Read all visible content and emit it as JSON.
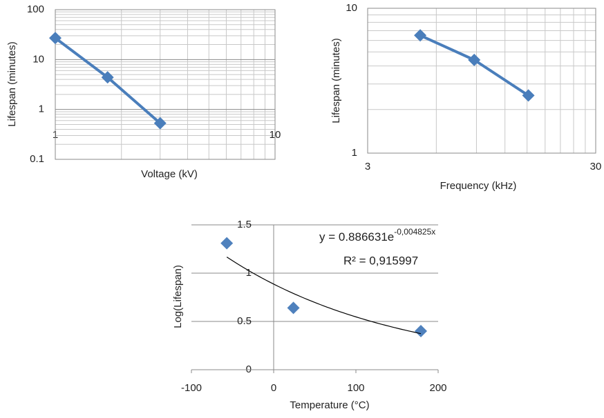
{
  "chart_data": [
    {
      "type": "line",
      "xlabel": "Voltage (kV)",
      "ylabel": "Lifespan (minutes)",
      "xlog": true,
      "ylog": true,
      "grid": "both",
      "minor_grid": true,
      "xlim": [
        1,
        10
      ],
      "ylim": [
        0.1,
        100
      ],
      "xticks": [
        1,
        10
      ],
      "yticks": [
        0.1,
        1,
        10,
        100
      ],
      "series": [
        {
          "color": "#4a7ebb",
          "x": [
            1,
            1.73,
            3.0
          ],
          "values": [
            27,
            4.4,
            0.53
          ]
        }
      ]
    },
    {
      "type": "line",
      "xlabel": "Frequency (kHz)",
      "ylabel": "Lifespan (minutes)",
      "xlog": true,
      "ylog": true,
      "grid": "both",
      "minor_grid": true,
      "xlim": [
        3,
        30
      ],
      "ylim": [
        1,
        10
      ],
      "xticks": [
        3,
        30
      ],
      "yticks": [
        1,
        10
      ],
      "series": [
        {
          "color": "#4a7ebb",
          "x": [
            5.1,
            8.8,
            15.2
          ],
          "values": [
            6.5,
            4.4,
            2.5
          ]
        }
      ]
    },
    {
      "type": "scatter",
      "xlabel": "Temperature (°C)",
      "ylabel": "Log(Lifespan)",
      "xlog": false,
      "ylog": false,
      "grid": "y",
      "minor_grid": false,
      "xlim": [
        -100,
        200
      ],
      "ylim": [
        0,
        1.5
      ],
      "xticks": [
        -100,
        0,
        100,
        200
      ],
      "yticks": [
        0,
        0.5,
        1,
        1.5
      ],
      "series": [
        {
          "color": "#4f81bd",
          "x": [
            -57,
            24,
            179
          ],
          "values": [
            1.31,
            0.64,
            0.4
          ]
        }
      ],
      "trendline": {
        "a": 0.886631,
        "b": -0.004825,
        "equation_label": "y = 0.886631e",
        "exponent_label": "-0,004825x",
        "r2_label": "R² = 0,915997"
      }
    }
  ]
}
